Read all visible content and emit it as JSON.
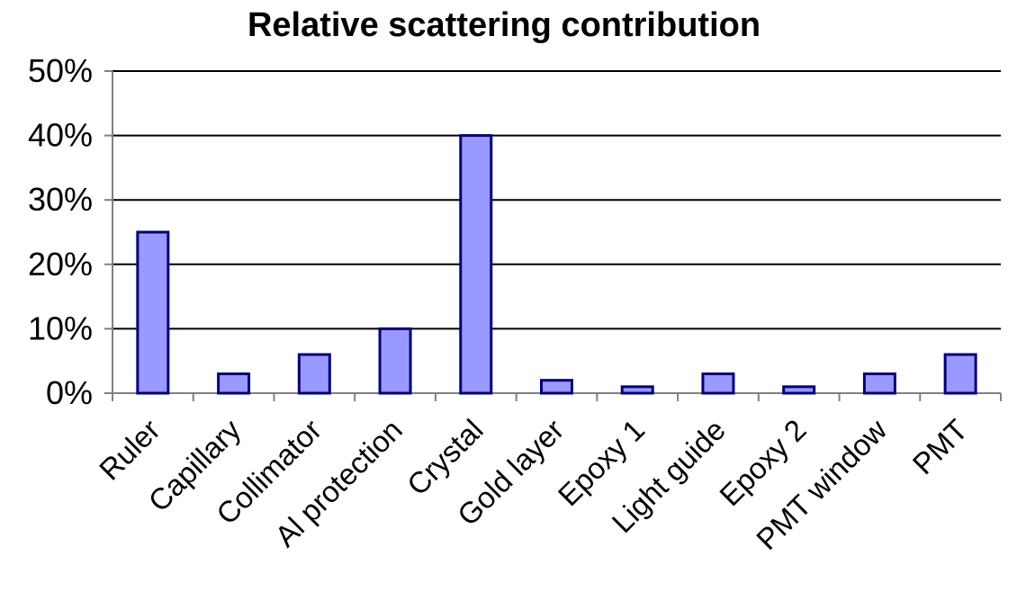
{
  "chart_data": {
    "type": "bar",
    "title": "Relative scattering contribution",
    "xlabel": "",
    "ylabel": "",
    "categories": [
      "Ruler",
      "Capillary",
      "Collimator",
      "Al protection",
      "Crystal",
      "Gold layer",
      "Epoxy 1",
      "Light guide",
      "Epoxy 2",
      "PMT window",
      "PMT"
    ],
    "values": [
      25,
      3,
      6,
      10,
      40,
      2,
      1,
      3,
      1,
      3,
      6
    ],
    "value_unit": "%",
    "ylim": [
      0,
      50
    ],
    "yticks": [
      0,
      10,
      20,
      30,
      40,
      50
    ],
    "ytick_labels": [
      "0%",
      "10%",
      "20%",
      "30%",
      "40%",
      "50%"
    ],
    "grid": "horizontal",
    "legend": "none",
    "colors": {
      "bar_fill": "#9999ff",
      "bar_stroke": "#000080",
      "grid": "#000000",
      "axis": "#808080"
    }
  }
}
